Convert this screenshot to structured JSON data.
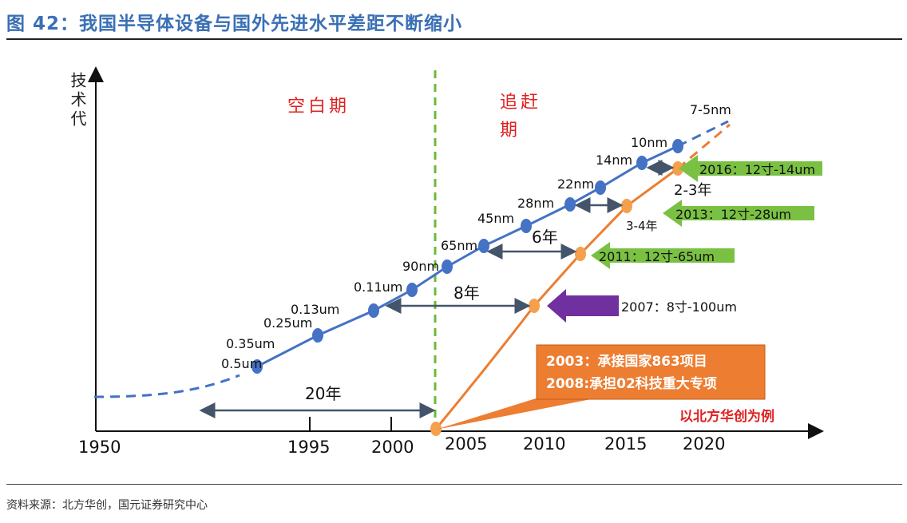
{
  "title": "图 42：我国半导体设备与国外先进水平差距不断缩小",
  "source": "资料来源：北方华创，国元证券研究中心",
  "y_axis_label": "技术代",
  "period_blank": "空白期",
  "period_catchup_1": "追赶",
  "period_catchup_2": "期",
  "x_ticks": [
    "1950",
    "1995",
    "2000",
    "2005",
    "2010",
    "2015",
    "2020"
  ],
  "global_nodes": [
    "0.5um",
    "0.35um",
    "0.25um",
    "0.13um",
    "0.11um",
    "90nm",
    "65nm",
    "45nm",
    "28nm",
    "22nm",
    "14nm",
    "10nm",
    "7-5nm"
  ],
  "gaps": [
    "20年",
    "8年",
    "6年",
    "3-4年",
    "2-3年"
  ],
  "milestones": [
    "2016：12寸-14um",
    "2013：12寸-28um",
    "2011：12寸-65um",
    "2007：8寸-100um"
  ],
  "callout": [
    "2003：承接国家863项目",
    "2008:承担02科技重大专项"
  ],
  "example_note": "以北方华创为例",
  "colors": {
    "global": "#4472c4",
    "domestic": "#ed7d31",
    "green": "#7ac143",
    "purple": "#7030a0",
    "red": "#e02020",
    "title": "#3a6fb5"
  }
}
